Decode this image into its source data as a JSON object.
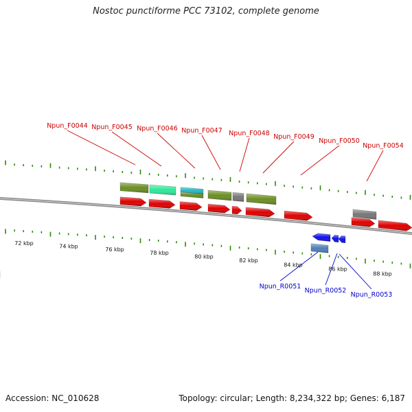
{
  "title": "Nostoc punctiforme PCC 73102, complete genome",
  "footer": {
    "accession": "Accession: NC_010628",
    "summary": "Topology: circular; Length: 8,234,322 bp; Genes: 6,187"
  },
  "colors": {
    "forward_label": "#cc0000",
    "reverse_label": "#0000cc",
    "gene_red": "#e00000",
    "gene_blue": "#1010ee",
    "gene_olive": "#6b8e23",
    "gene_green": "#2ee89a",
    "gene_teal": "#22b8c8",
    "gene_gray": "#777777",
    "gene_steel": "#4d7fb8",
    "tick": "#2a8a00",
    "backbone": "#8a8a8a"
  },
  "scale": {
    "labels": [
      "72 kbp",
      "74 kbp",
      "76 kbp",
      "78 kbp",
      "80 kbp",
      "82 kbp",
      "84 kbp",
      "86 kbp",
      "88 kbp"
    ]
  },
  "forward_genes": [
    {
      "label": "Npun_F0044"
    },
    {
      "label": "Npun_F0045"
    },
    {
      "label": "Npun_F0046"
    },
    {
      "label": "Npun_F0047"
    },
    {
      "label": "Npun_F0048"
    },
    {
      "label": "Npun_F0049"
    },
    {
      "label": "Npun_F0050"
    },
    {
      "label": "Npun_F0054"
    }
  ],
  "reverse_genes": [
    {
      "label": "Npun_R0051"
    },
    {
      "label": "Npun_R0052"
    },
    {
      "label": "Npun_R0053"
    }
  ]
}
